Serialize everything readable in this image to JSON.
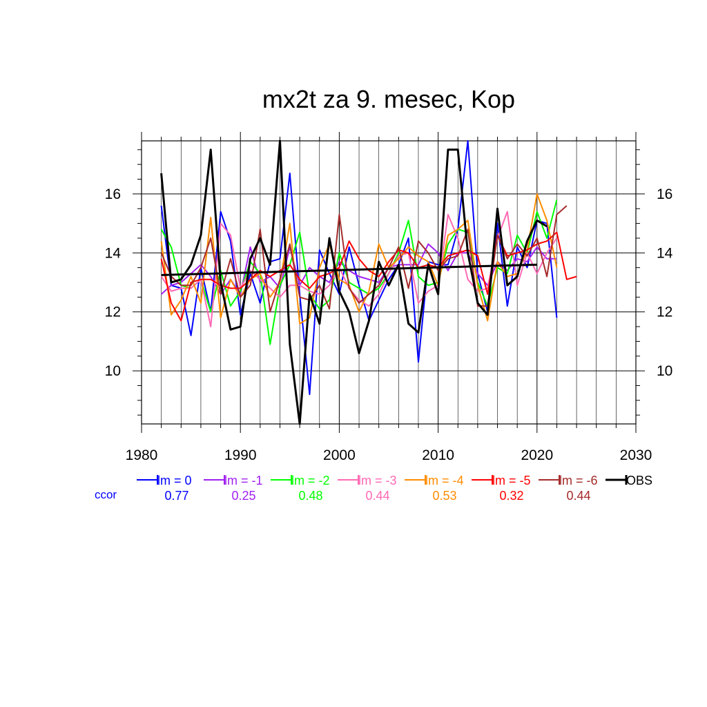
{
  "chart_data": {
    "type": "line",
    "title": "mx2t za 9. mesec, Kop",
    "xlabel": "",
    "ylabel": "",
    "xlim": [
      1980,
      2030
    ],
    "ylim": [
      8.2,
      17.8
    ],
    "x_ticks": [
      1980,
      1990,
      2000,
      2010,
      2020,
      2030
    ],
    "y_ticks": [
      10,
      12,
      14,
      16
    ],
    "grid": true,
    "legend_position": "below",
    "ccor_label": "ccor",
    "series": [
      {
        "name": "lm = 0",
        "color": "#0000ff",
        "ccor": "0.77",
        "x_start": 1982,
        "values": [
          15.6,
          12.9,
          12.8,
          11.2,
          13.5,
          12.0,
          15.4,
          14.4,
          11.9,
          13.3,
          12.3,
          13.7,
          13.8,
          16.7,
          12.6,
          9.2,
          14.1,
          13.3,
          12.6,
          14.2,
          12.9,
          11.7,
          12.4,
          13.1,
          13.6,
          14.5,
          10.3,
          13.7,
          13.6,
          13.6,
          14.8,
          17.8,
          13.3,
          12.0,
          15.0,
          12.2,
          14.2,
          13.5,
          15.1,
          15.0,
          11.8
        ]
      },
      {
        "name": "lm = -1",
        "color": "#a020f0",
        "ccor": "0.25",
        "x_start": 1982,
        "values": [
          12.6,
          12.9,
          13.0,
          13.3,
          13.6,
          13.2,
          12.6,
          13.1,
          12.6,
          14.2,
          13.0,
          13.2,
          12.8,
          14.2,
          12.9,
          13.5,
          13.2,
          13.0,
          13.7,
          13.4,
          13.2,
          13.1,
          13.0,
          13.5,
          13.6,
          13.6,
          13.6,
          14.3,
          14.0,
          13.4,
          14.0,
          14.0,
          13.3,
          12.9,
          13.7,
          13.4,
          13.8,
          13.7,
          14.2,
          13.8,
          13.8
        ]
      },
      {
        "name": "lm = -2",
        "color": "#00ff00",
        "ccor": "0.48",
        "x_start": 1982,
        "values": [
          14.8,
          14.2,
          12.9,
          12.8,
          13.1,
          12.0,
          13.4,
          12.2,
          12.7,
          13.7,
          13.3,
          10.9,
          12.9,
          13.6,
          14.7,
          12.6,
          12.1,
          12.4,
          14.0,
          13.0,
          12.8,
          12.6,
          12.8,
          13.3,
          14.0,
          15.1,
          13.2,
          12.9,
          13.0,
          14.3,
          14.8,
          14.7,
          13.0,
          12.2,
          13.5,
          13.3,
          14.6,
          14.0,
          15.4,
          14.5,
          15.8
        ]
      },
      {
        "name": "lm = -3",
        "color": "#ff69b4",
        "ccor": "0.44",
        "x_start": 1982,
        "values": [
          13.2,
          12.7,
          12.8,
          12.8,
          13.1,
          11.5,
          15.0,
          14.6,
          12.8,
          13.4,
          13.1,
          12.8,
          12.5,
          12.9,
          12.9,
          12.7,
          12.6,
          12.9,
          13.5,
          12.8,
          12.4,
          12.2,
          12.6,
          13.3,
          13.9,
          14.0,
          12.3,
          12.7,
          12.9,
          15.3,
          14.5,
          13.1,
          12.7,
          12.8,
          14.5,
          15.4,
          12.9,
          14.0,
          13.3,
          14.0,
          14.5
        ]
      },
      {
        "name": "lm = -4",
        "color": "#ff8c00",
        "ccor": "0.53",
        "x_start": 1982,
        "values": [
          14.4,
          11.9,
          12.4,
          13.2,
          12.3,
          15.2,
          11.8,
          13.1,
          12.5,
          13.1,
          13.3,
          12.5,
          13.0,
          15.0,
          11.6,
          11.8,
          13.5,
          14.3,
          13.1,
          12.9,
          12.0,
          12.7,
          14.3,
          13.5,
          13.8,
          14.2,
          13.9,
          13.7,
          12.9,
          14.6,
          14.8,
          15.1,
          12.9,
          11.7,
          13.7,
          13.2,
          13.3,
          14.1,
          16.0,
          15.1,
          13.5
        ]
      },
      {
        "name": "lm = -5",
        "color": "#ff0000",
        "ccor": "0.32",
        "x_start": 1982,
        "values": [
          13.8,
          12.3,
          11.7,
          13.0,
          13.1,
          13.1,
          12.9,
          12.8,
          12.8,
          13.1,
          13.4,
          13.2,
          13.4,
          13.6,
          13.1,
          12.8,
          13.2,
          13.3,
          13.5,
          14.4,
          13.8,
          13.4,
          13.2,
          13.7,
          14.1,
          14.0,
          13.5,
          13.6,
          13.5,
          13.9,
          14.0,
          14.1,
          13.9,
          12.6,
          14.6,
          13.9,
          14.0,
          14.1,
          14.3,
          14.4,
          14.7,
          13.1,
          13.2
        ]
      },
      {
        "name": "lm = -6",
        "color": "#a52a2a",
        "ccor": "0.44",
        "x_start": 1982,
        "values": [
          14.0,
          13.2,
          12.9,
          12.9,
          13.5,
          14.5,
          12.6,
          13.8,
          12.5,
          12.9,
          14.8,
          12.0,
          13.1,
          14.3,
          12.5,
          12.4,
          12.9,
          12.1,
          15.3,
          12.8,
          12.3,
          12.6,
          12.9,
          13.5,
          14.2,
          12.8,
          14.4,
          14.0,
          13.4,
          13.8,
          13.9,
          14.8,
          12.2,
          12.2,
          14.6,
          13.8,
          14.3,
          13.9,
          14.5,
          13.2,
          15.3,
          15.6
        ]
      },
      {
        "name": "OBS",
        "color": "#000000",
        "ccor": "",
        "x_start": 1982,
        "values": [
          16.7,
          13.0,
          13.1,
          13.6,
          14.6,
          17.5,
          13.0,
          11.4,
          11.5,
          13.8,
          14.5,
          13.6,
          17.8,
          10.9,
          8.2,
          12.6,
          11.6,
          14.5,
          12.7,
          12.0,
          10.6,
          11.7,
          13.7,
          12.9,
          13.6,
          11.6,
          11.3,
          13.6,
          12.6,
          17.5,
          17.5,
          14.0,
          12.3,
          11.9,
          15.5,
          12.9,
          13.2,
          14.4,
          15.1,
          14.9
        ]
      }
    ],
    "trend": {
      "name": "OBS trend",
      "color": "#000000",
      "x": [
        1982,
        2020
      ],
      "y": [
        13.25,
        13.6
      ]
    }
  }
}
